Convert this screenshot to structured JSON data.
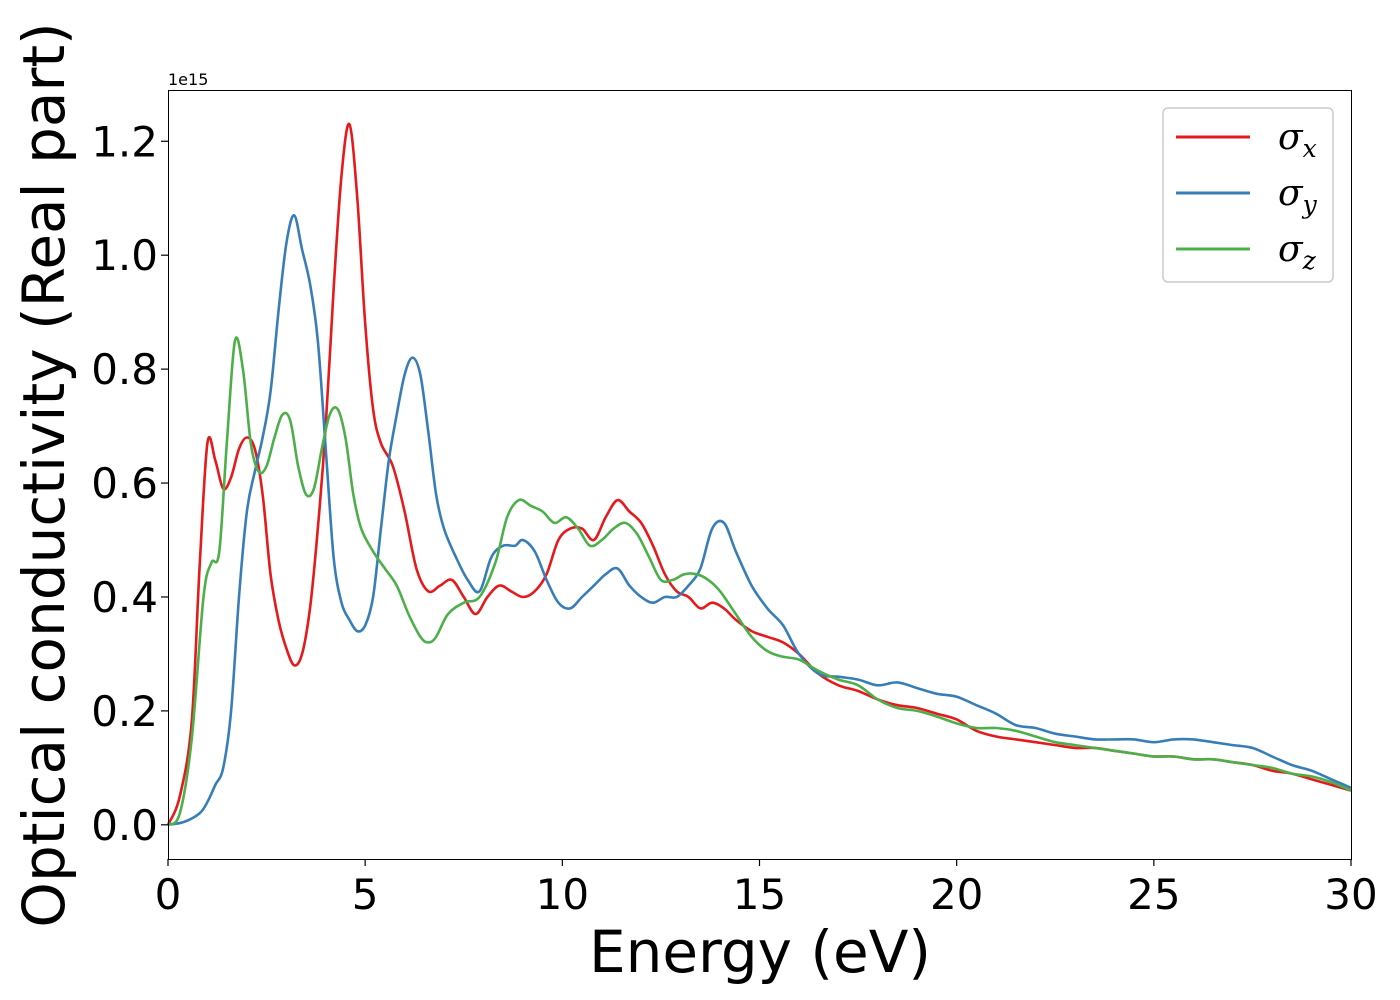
{
  "chart_data": {
    "type": "line",
    "title": "",
    "xlabel": "Energy (eV)",
    "ylabel": "Optical conductivity (Real part)",
    "y_offset_text": "1e15",
    "xlim": [
      0,
      30
    ],
    "ylim": [
      -0.06,
      1.29
    ],
    "xticks": [
      0,
      5,
      10,
      15,
      20,
      25,
      30
    ],
    "xtick_labels": [
      "0",
      "5",
      "10",
      "15",
      "20",
      "25",
      "30"
    ],
    "yticks": [
      0.0,
      0.2,
      0.4,
      0.6,
      0.8,
      1.0,
      1.2
    ],
    "ytick_labels": [
      "0.0",
      "0.2",
      "0.4",
      "0.6",
      "0.8",
      "1.0",
      "1.2"
    ],
    "grid": false,
    "legend_position": "top-right",
    "series": [
      {
        "name": "σx",
        "sym": "σ",
        "sub": "x",
        "color": "#e41a1c",
        "points": [
          [
            0,
            0
          ],
          [
            0.3,
            0.05
          ],
          [
            0.6,
            0.18
          ],
          [
            0.8,
            0.45
          ],
          [
            1.0,
            0.67
          ],
          [
            1.2,
            0.64
          ],
          [
            1.4,
            0.59
          ],
          [
            1.6,
            0.61
          ],
          [
            1.8,
            0.66
          ],
          [
            2.0,
            0.68
          ],
          [
            2.2,
            0.66
          ],
          [
            2.4,
            0.58
          ],
          [
            2.6,
            0.44
          ],
          [
            2.8,
            0.36
          ],
          [
            3.0,
            0.31
          ],
          [
            3.2,
            0.28
          ],
          [
            3.4,
            0.3
          ],
          [
            3.6,
            0.38
          ],
          [
            3.8,
            0.52
          ],
          [
            4.0,
            0.7
          ],
          [
            4.2,
            0.94
          ],
          [
            4.4,
            1.14
          ],
          [
            4.6,
            1.23
          ],
          [
            4.8,
            1.1
          ],
          [
            5.0,
            0.88
          ],
          [
            5.2,
            0.73
          ],
          [
            5.4,
            0.67
          ],
          [
            5.7,
            0.63
          ],
          [
            6.0,
            0.55
          ],
          [
            6.3,
            0.45
          ],
          [
            6.6,
            0.41
          ],
          [
            6.9,
            0.42
          ],
          [
            7.2,
            0.43
          ],
          [
            7.5,
            0.4
          ],
          [
            7.8,
            0.37
          ],
          [
            8.1,
            0.4
          ],
          [
            8.4,
            0.42
          ],
          [
            8.7,
            0.41
          ],
          [
            9.0,
            0.4
          ],
          [
            9.3,
            0.41
          ],
          [
            9.6,
            0.44
          ],
          [
            9.9,
            0.5
          ],
          [
            10.2,
            0.52
          ],
          [
            10.5,
            0.52
          ],
          [
            10.8,
            0.5
          ],
          [
            11.1,
            0.54
          ],
          [
            11.4,
            0.57
          ],
          [
            11.7,
            0.55
          ],
          [
            12.0,
            0.53
          ],
          [
            12.3,
            0.49
          ],
          [
            12.6,
            0.44
          ],
          [
            12.9,
            0.41
          ],
          [
            13.2,
            0.4
          ],
          [
            13.5,
            0.38
          ],
          [
            13.8,
            0.39
          ],
          [
            14.1,
            0.38
          ],
          [
            14.4,
            0.36
          ],
          [
            14.8,
            0.34
          ],
          [
            15.2,
            0.33
          ],
          [
            15.6,
            0.32
          ],
          [
            16.0,
            0.3
          ],
          [
            16.5,
            0.265
          ],
          [
            17.0,
            0.245
          ],
          [
            17.5,
            0.235
          ],
          [
            18.0,
            0.22
          ],
          [
            18.5,
            0.21
          ],
          [
            19.0,
            0.205
          ],
          [
            19.5,
            0.195
          ],
          [
            20.0,
            0.185
          ],
          [
            20.5,
            0.165
          ],
          [
            21.0,
            0.155
          ],
          [
            21.5,
            0.15
          ],
          [
            22.0,
            0.145
          ],
          [
            22.5,
            0.14
          ],
          [
            23.0,
            0.135
          ],
          [
            23.5,
            0.135
          ],
          [
            24.0,
            0.13
          ],
          [
            24.5,
            0.125
          ],
          [
            25.0,
            0.12
          ],
          [
            25.5,
            0.12
          ],
          [
            26.0,
            0.115
          ],
          [
            26.5,
            0.115
          ],
          [
            27.0,
            0.11
          ],
          [
            27.5,
            0.105
          ],
          [
            28.0,
            0.095
          ],
          [
            28.5,
            0.09
          ],
          [
            29.0,
            0.08
          ],
          [
            29.5,
            0.07
          ],
          [
            30.0,
            0.06
          ]
        ]
      },
      {
        "name": "σy",
        "sym": "σ",
        "sub": "y",
        "color": "#377eb8",
        "points": [
          [
            0,
            0
          ],
          [
            0.4,
            0.005
          ],
          [
            0.8,
            0.02
          ],
          [
            1.0,
            0.04
          ],
          [
            1.2,
            0.07
          ],
          [
            1.4,
            0.1
          ],
          [
            1.6,
            0.2
          ],
          [
            1.8,
            0.4
          ],
          [
            2.0,
            0.55
          ],
          [
            2.2,
            0.62
          ],
          [
            2.4,
            0.68
          ],
          [
            2.6,
            0.76
          ],
          [
            2.8,
            0.9
          ],
          [
            3.0,
            1.02
          ],
          [
            3.2,
            1.07
          ],
          [
            3.4,
            1.01
          ],
          [
            3.6,
            0.95
          ],
          [
            3.8,
            0.85
          ],
          [
            4.0,
            0.66
          ],
          [
            4.2,
            0.47
          ],
          [
            4.4,
            0.39
          ],
          [
            4.6,
            0.36
          ],
          [
            4.8,
            0.34
          ],
          [
            5.0,
            0.35
          ],
          [
            5.2,
            0.4
          ],
          [
            5.4,
            0.52
          ],
          [
            5.6,
            0.64
          ],
          [
            5.8,
            0.72
          ],
          [
            6.0,
            0.79
          ],
          [
            6.2,
            0.82
          ],
          [
            6.4,
            0.79
          ],
          [
            6.6,
            0.69
          ],
          [
            6.8,
            0.58
          ],
          [
            7.0,
            0.52
          ],
          [
            7.3,
            0.47
          ],
          [
            7.6,
            0.43
          ],
          [
            7.9,
            0.41
          ],
          [
            8.2,
            0.47
          ],
          [
            8.5,
            0.49
          ],
          [
            8.8,
            0.49
          ],
          [
            9.0,
            0.5
          ],
          [
            9.3,
            0.48
          ],
          [
            9.6,
            0.43
          ],
          [
            9.9,
            0.39
          ],
          [
            10.2,
            0.38
          ],
          [
            10.5,
            0.4
          ],
          [
            10.8,
            0.42
          ],
          [
            11.1,
            0.44
          ],
          [
            11.4,
            0.45
          ],
          [
            11.7,
            0.42
          ],
          [
            12.0,
            0.4
          ],
          [
            12.3,
            0.39
          ],
          [
            12.6,
            0.4
          ],
          [
            12.9,
            0.4
          ],
          [
            13.2,
            0.42
          ],
          [
            13.5,
            0.45
          ],
          [
            13.8,
            0.52
          ],
          [
            14.1,
            0.53
          ],
          [
            14.4,
            0.48
          ],
          [
            14.8,
            0.42
          ],
          [
            15.2,
            0.38
          ],
          [
            15.6,
            0.35
          ],
          [
            16.0,
            0.3
          ],
          [
            16.5,
            0.265
          ],
          [
            17.0,
            0.26
          ],
          [
            17.5,
            0.255
          ],
          [
            18.0,
            0.245
          ],
          [
            18.5,
            0.25
          ],
          [
            19.0,
            0.24
          ],
          [
            19.5,
            0.23
          ],
          [
            20.0,
            0.225
          ],
          [
            20.5,
            0.21
          ],
          [
            21.0,
            0.195
          ],
          [
            21.5,
            0.175
          ],
          [
            22.0,
            0.17
          ],
          [
            22.5,
            0.16
          ],
          [
            23.0,
            0.155
          ],
          [
            23.5,
            0.15
          ],
          [
            24.0,
            0.15
          ],
          [
            24.5,
            0.15
          ],
          [
            25.0,
            0.145
          ],
          [
            25.5,
            0.15
          ],
          [
            26.0,
            0.15
          ],
          [
            26.5,
            0.145
          ],
          [
            27.0,
            0.14
          ],
          [
            27.5,
            0.135
          ],
          [
            28.0,
            0.12
          ],
          [
            28.5,
            0.105
          ],
          [
            29.0,
            0.095
          ],
          [
            29.5,
            0.08
          ],
          [
            30.0,
            0.065
          ]
        ]
      },
      {
        "name": "σz",
        "sym": "σ",
        "sub": "z",
        "color": "#4daf4a",
        "points": [
          [
            0,
            0
          ],
          [
            0.3,
            0.02
          ],
          [
            0.6,
            0.15
          ],
          [
            0.9,
            0.4
          ],
          [
            1.1,
            0.46
          ],
          [
            1.3,
            0.48
          ],
          [
            1.5,
            0.68
          ],
          [
            1.7,
            0.85
          ],
          [
            1.9,
            0.8
          ],
          [
            2.1,
            0.67
          ],
          [
            2.3,
            0.62
          ],
          [
            2.5,
            0.63
          ],
          [
            2.7,
            0.68
          ],
          [
            2.9,
            0.72
          ],
          [
            3.1,
            0.71
          ],
          [
            3.3,
            0.63
          ],
          [
            3.5,
            0.58
          ],
          [
            3.7,
            0.59
          ],
          [
            3.9,
            0.66
          ],
          [
            4.1,
            0.72
          ],
          [
            4.3,
            0.73
          ],
          [
            4.5,
            0.68
          ],
          [
            4.7,
            0.58
          ],
          [
            4.9,
            0.52
          ],
          [
            5.2,
            0.48
          ],
          [
            5.5,
            0.45
          ],
          [
            5.8,
            0.42
          ],
          [
            6.1,
            0.37
          ],
          [
            6.4,
            0.33
          ],
          [
            6.6,
            0.32
          ],
          [
            6.8,
            0.33
          ],
          [
            7.1,
            0.37
          ],
          [
            7.5,
            0.39
          ],
          [
            7.9,
            0.4
          ],
          [
            8.3,
            0.46
          ],
          [
            8.6,
            0.54
          ],
          [
            8.9,
            0.57
          ],
          [
            9.2,
            0.56
          ],
          [
            9.5,
            0.55
          ],
          [
            9.8,
            0.53
          ],
          [
            10.1,
            0.54
          ],
          [
            10.4,
            0.52
          ],
          [
            10.7,
            0.49
          ],
          [
            11.0,
            0.5
          ],
          [
            11.3,
            0.52
          ],
          [
            11.6,
            0.53
          ],
          [
            11.9,
            0.51
          ],
          [
            12.2,
            0.47
          ],
          [
            12.5,
            0.43
          ],
          [
            12.8,
            0.43
          ],
          [
            13.1,
            0.44
          ],
          [
            13.4,
            0.44
          ],
          [
            13.7,
            0.43
          ],
          [
            14.0,
            0.41
          ],
          [
            14.4,
            0.37
          ],
          [
            14.8,
            0.33
          ],
          [
            15.2,
            0.305
          ],
          [
            15.6,
            0.295
          ],
          [
            16.0,
            0.29
          ],
          [
            16.5,
            0.27
          ],
          [
            17.0,
            0.255
          ],
          [
            17.5,
            0.245
          ],
          [
            18.0,
            0.22
          ],
          [
            18.5,
            0.205
          ],
          [
            19.0,
            0.2
          ],
          [
            19.5,
            0.19
          ],
          [
            20.0,
            0.178
          ],
          [
            20.5,
            0.17
          ],
          [
            21.0,
            0.17
          ],
          [
            21.5,
            0.165
          ],
          [
            22.0,
            0.155
          ],
          [
            22.5,
            0.145
          ],
          [
            23.0,
            0.14
          ],
          [
            23.5,
            0.135
          ],
          [
            24.0,
            0.13
          ],
          [
            24.5,
            0.125
          ],
          [
            25.0,
            0.12
          ],
          [
            25.5,
            0.12
          ],
          [
            26.0,
            0.115
          ],
          [
            26.5,
            0.115
          ],
          [
            27.0,
            0.11
          ],
          [
            27.5,
            0.105
          ],
          [
            28.0,
            0.1
          ],
          [
            28.5,
            0.09
          ],
          [
            29.0,
            0.085
          ],
          [
            29.5,
            0.075
          ],
          [
            30.0,
            0.06
          ]
        ]
      }
    ]
  }
}
